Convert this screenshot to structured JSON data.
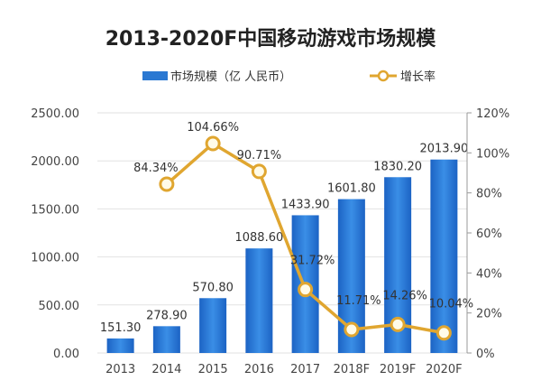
{
  "chart_data": {
    "type": "bar+line",
    "title": "2013-2020F中国移动游戏市场规模",
    "categories": [
      "2013",
      "2014",
      "2015",
      "2016",
      "2017",
      "2018F",
      "2019F",
      "2020F"
    ],
    "series": [
      {
        "name": "市场规模（亿 人民币）",
        "type": "bar",
        "axis": "left",
        "color": "#2a78d2",
        "values": [
          151.3,
          278.9,
          570.8,
          1088.6,
          1433.9,
          1601.8,
          1830.2,
          2013.9
        ],
        "labels": [
          "151.30",
          "278.90",
          "570.80",
          "1088.60",
          "1433.90",
          "1601.80",
          "1830.20",
          "2013.90"
        ]
      },
      {
        "name": "增长率",
        "type": "line",
        "axis": "right",
        "color": "#e0a630",
        "values": [
          null,
          84.34,
          104.66,
          90.71,
          31.72,
          11.71,
          14.26,
          10.04
        ],
        "labels": [
          "",
          "84.34%",
          "104.66%",
          "90.71%",
          "31.72%",
          "11.71%",
          "14.26%",
          "10.04%"
        ]
      }
    ],
    "left_axis": {
      "range": [
        0,
        2500
      ],
      "ticks": [
        "0.00",
        "500.00",
        "1000.00",
        "1500.00",
        "2000.00",
        "2500.00"
      ]
    },
    "right_axis": {
      "range": [
        0,
        120
      ],
      "ticks": [
        "0%",
        "20%",
        "40%",
        "60%",
        "80%",
        "100%",
        "120%"
      ]
    },
    "grid": true,
    "legend_position": "top"
  }
}
